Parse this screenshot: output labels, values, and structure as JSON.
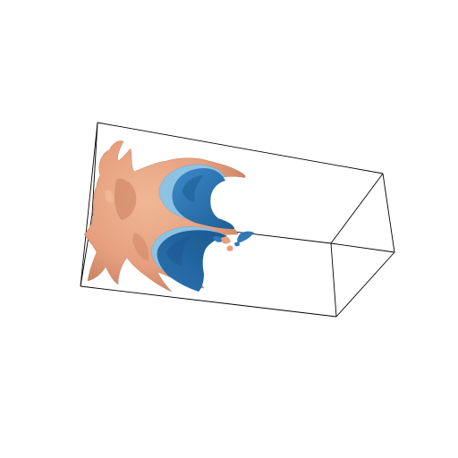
{
  "scene": {
    "background": "#ffffff",
    "bounding_box_color": "#000000",
    "surfaces": [
      {
        "name": "isosurface-outer",
        "color": "#e6a07f",
        "shade": "#c9805f"
      },
      {
        "name": "isosurface-middle",
        "color": "#8ec2e2",
        "shade": "#6aa6cf"
      },
      {
        "name": "isosurface-inner",
        "color": "#2f7ab8",
        "shade": "#1e5f98"
      }
    ]
  }
}
